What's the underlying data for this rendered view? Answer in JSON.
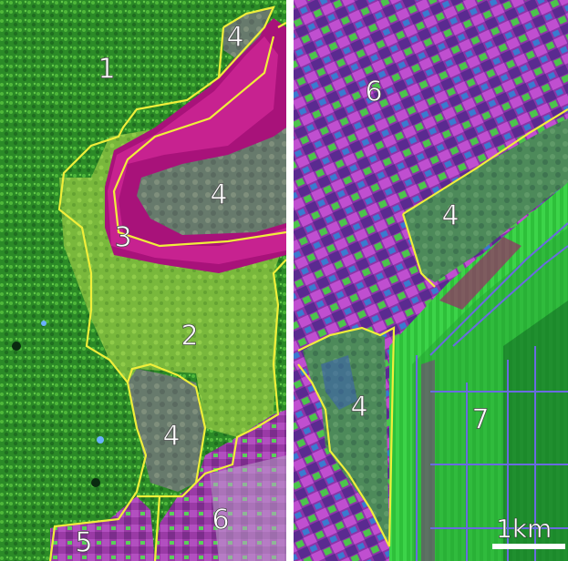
{
  "left_panel": {
    "zones": [
      {
        "id": "zone-1",
        "label": "1"
      },
      {
        "id": "zone-4-top",
        "label": "4"
      },
      {
        "id": "zone-4-inner",
        "label": "4"
      },
      {
        "id": "zone-3",
        "label": "3"
      },
      {
        "id": "zone-2",
        "label": "2"
      },
      {
        "id": "zone-4-lower",
        "label": "4"
      },
      {
        "id": "zone-5",
        "label": "5"
      },
      {
        "id": "zone-6",
        "label": "6"
      }
    ]
  },
  "right_panel": {
    "zones": [
      {
        "id": "zone-6",
        "label": "6"
      },
      {
        "id": "zone-4-upper",
        "label": "4"
      },
      {
        "id": "zone-4-left",
        "label": "4"
      },
      {
        "id": "zone-7",
        "label": "7"
      }
    ],
    "scale_bar": {
      "label": "1km"
    }
  },
  "colors": {
    "forest": "#2f8a2a",
    "grassland": "#7fbf3a",
    "river": "#b0107a",
    "wetland": "#6a7a70",
    "cropland": "#9a3aa8",
    "plantation": "#2ecf3a",
    "boundary": "#f0f040",
    "plantation_roads": "#6a6ad8"
  }
}
